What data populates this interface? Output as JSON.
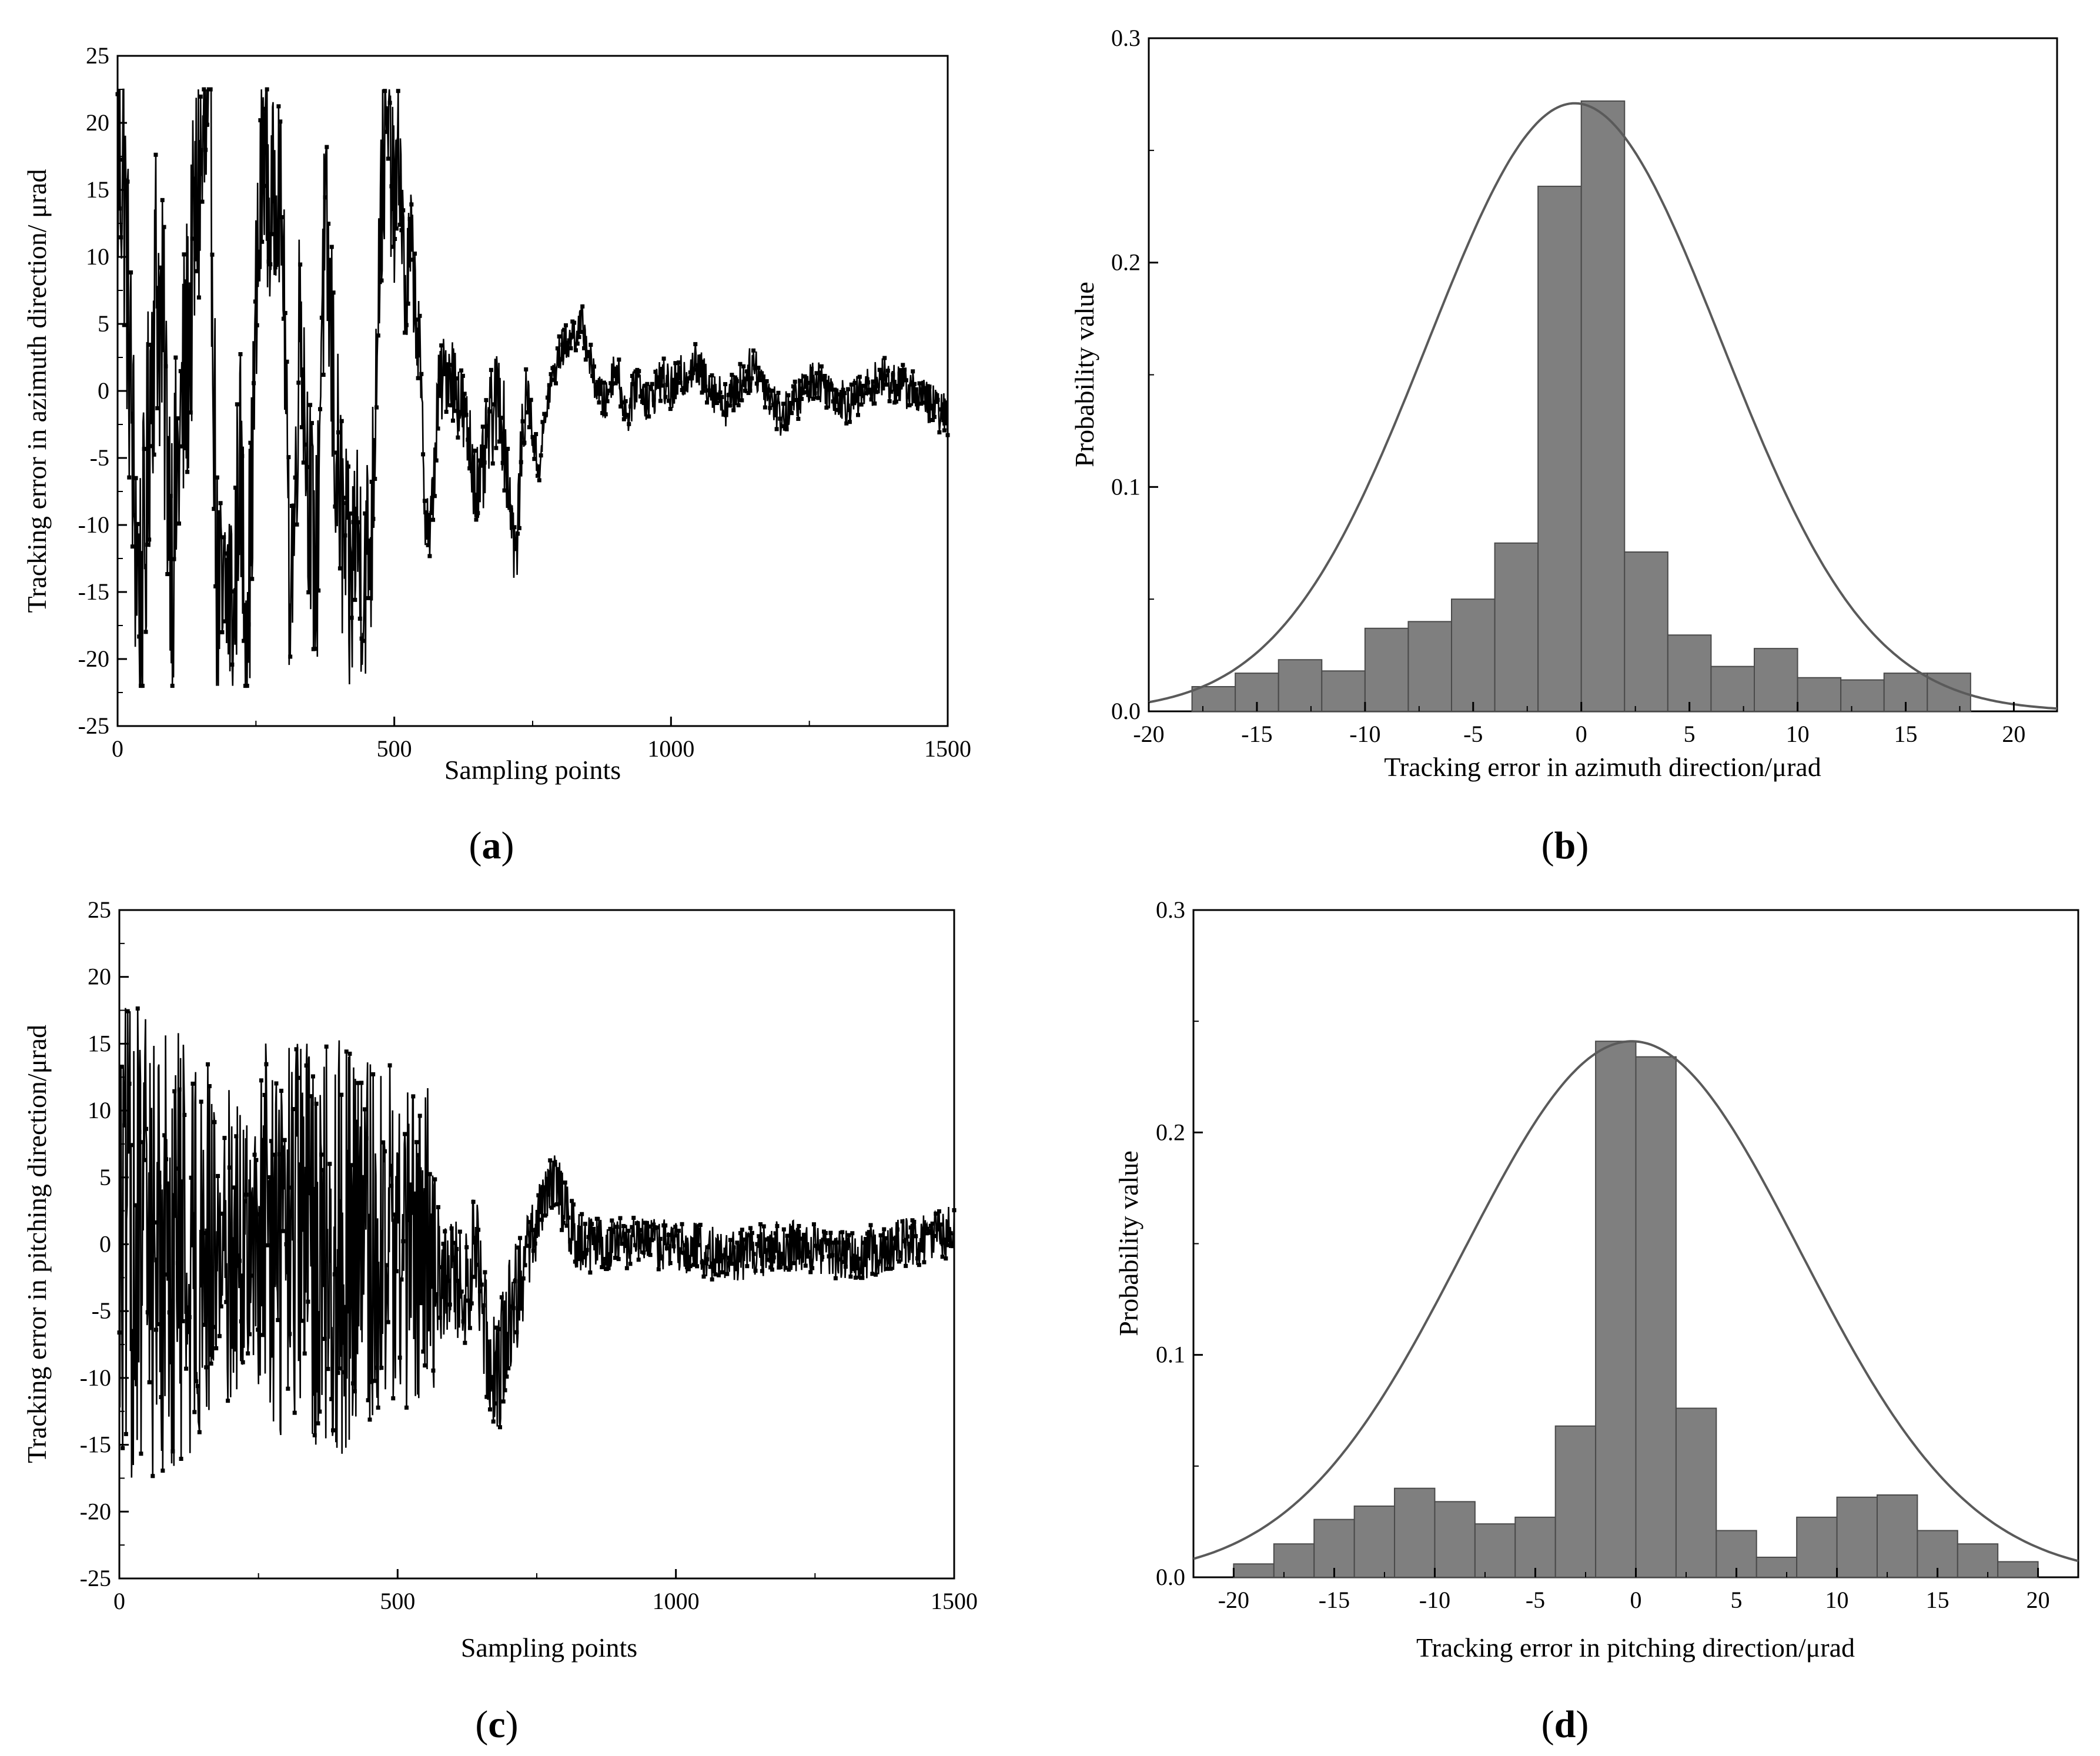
{
  "figure": {
    "panels": [
      "a",
      "b",
      "c",
      "d"
    ],
    "colors": {
      "line": "#000000",
      "bar": "#7f7f7f",
      "bar_edge": "#4a4a4a",
      "curve": "#5a5a5a",
      "frame": "#000000"
    }
  },
  "chart_data": [
    {
      "id": "a",
      "panel_label": "a",
      "type": "line",
      "title": "",
      "xlabel": "Sampling points",
      "ylabel": "Tracking error in azimuth direction/ μrad",
      "xlim": [
        0,
        1500
      ],
      "ylim": [
        -25,
        25
      ],
      "xticks": [
        0,
        500,
        1000,
        1500
      ],
      "yticks": [
        -25,
        -20,
        -15,
        -10,
        -5,
        0,
        5,
        10,
        15,
        20,
        25
      ],
      "markers": true,
      "envelope": [
        [
          0,
          17
        ],
        [
          10,
          18
        ],
        [
          20,
          5
        ],
        [
          30,
          -8
        ],
        [
          40,
          -16
        ],
        [
          50,
          -12
        ],
        [
          60,
          2
        ],
        [
          70,
          9
        ],
        [
          80,
          4
        ],
        [
          100,
          -12
        ],
        [
          110,
          -5
        ],
        [
          120,
          0
        ],
        [
          130,
          5
        ],
        [
          145,
          15
        ],
        [
          160,
          18
        ],
        [
          170,
          14
        ],
        [
          180,
          -16
        ],
        [
          190,
          -18
        ],
        [
          200,
          -14
        ],
        [
          210,
          -18
        ],
        [
          220,
          -4
        ],
        [
          230,
          -15
        ],
        [
          240,
          -12
        ],
        [
          250,
          5
        ],
        [
          260,
          15
        ],
        [
          265,
          20
        ],
        [
          275,
          12
        ],
        [
          290,
          17
        ],
        [
          300,
          9
        ],
        [
          310,
          -14
        ],
        [
          320,
          -10
        ],
        [
          330,
          8
        ],
        [
          340,
          -3
        ],
        [
          350,
          -10
        ],
        [
          360,
          -14
        ],
        [
          370,
          9
        ],
        [
          380,
          9
        ],
        [
          395,
          -5
        ],
        [
          410,
          -12
        ],
        [
          420,
          -16
        ],
        [
          430,
          -10
        ],
        [
          445,
          -14
        ],
        [
          460,
          -10
        ],
        [
          470,
          8
        ],
        [
          480,
          17
        ],
        [
          490,
          19
        ],
        [
          500,
          13
        ],
        [
          510,
          18
        ],
        [
          520,
          6
        ],
        [
          530,
          11
        ],
        [
          545,
          3
        ],
        [
          555,
          -8
        ],
        [
          565,
          -11
        ],
        [
          580,
          0
        ],
        [
          600,
          2
        ],
        [
          620,
          -1
        ],
        [
          640,
          -5
        ],
        [
          655,
          -8
        ],
        [
          670,
          -3
        ],
        [
          690,
          0
        ],
        [
          710,
          -8
        ],
        [
          720,
          -13
        ],
        [
          730,
          -4
        ],
        [
          740,
          0
        ],
        [
          760,
          -6
        ],
        [
          780,
          0
        ],
        [
          800,
          3
        ],
        [
          820,
          4
        ],
        [
          840,
          5
        ],
        [
          860,
          1
        ],
        [
          880,
          -1
        ],
        [
          900,
          2
        ],
        [
          920,
          -2
        ],
        [
          940,
          1
        ],
        [
          960,
          -1
        ],
        [
          980,
          1
        ],
        [
          1000,
          0
        ],
        [
          1040,
          2
        ],
        [
          1100,
          -1
        ],
        [
          1150,
          2
        ],
        [
          1200,
          -2
        ],
        [
          1260,
          1
        ],
        [
          1320,
          -1
        ],
        [
          1380,
          1
        ],
        [
          1440,
          0
        ],
        [
          1500,
          -2
        ]
      ],
      "noise_amplitude": [
        [
          0,
          12
        ],
        [
          170,
          11
        ],
        [
          250,
          9
        ],
        [
          300,
          7
        ],
        [
          380,
          10
        ],
        [
          470,
          8
        ],
        [
          560,
          3
        ],
        [
          700,
          4
        ],
        [
          760,
          1.5
        ],
        [
          850,
          1.5
        ],
        [
          1000,
          1.8
        ],
        [
          1250,
          1.6
        ],
        [
          1500,
          1.6
        ]
      ]
    },
    {
      "id": "b",
      "panel_label": "b",
      "type": "bar",
      "title": "",
      "xlabel": "Tracking error in azimuth direction/μrad",
      "ylabel": "Probability value",
      "xlim": [
        -20,
        22
      ],
      "ylim": [
        0,
        0.3
      ],
      "xticks": [
        -20,
        -15,
        -10,
        -5,
        0,
        5,
        10,
        15,
        20
      ],
      "yticks": [
        0.0,
        0.1,
        0.2,
        0.3
      ],
      "ytick_labels": [
        "0.0",
        "0.1",
        "0.2",
        "0.3"
      ],
      "bin_edges": [
        -18,
        -16,
        -14,
        -12,
        -10,
        -8,
        -6,
        -4,
        -2,
        0,
        2,
        4,
        6,
        8,
        10,
        12,
        14,
        16,
        18
      ],
      "values": [
        0.011,
        0.017,
        0.023,
        0.018,
        0.037,
        0.04,
        0.05,
        0.075,
        0.234,
        0.272,
        0.071,
        0.034,
        0.02,
        0.028,
        0.015,
        0.014,
        0.017,
        0.017
      ],
      "fit_curve": {
        "type": "normal",
        "mean": -0.3,
        "sd": 6.8,
        "peak": 0.271
      }
    },
    {
      "id": "c",
      "panel_label": "c",
      "type": "line",
      "title": "",
      "xlabel": "Sampling points",
      "ylabel": "Tracking error in pitching direction/μrad",
      "xlim": [
        0,
        1500
      ],
      "ylim": [
        -25,
        25
      ],
      "xticks": [
        0,
        500,
        1000,
        1500
      ],
      "yticks": [
        -25,
        -20,
        -15,
        -10,
        -5,
        0,
        5,
        10,
        15,
        20,
        25
      ],
      "markers": true,
      "envelope": [
        [
          0,
          0
        ],
        [
          250,
          0
        ],
        [
          560,
          0
        ],
        [
          580,
          -3
        ],
        [
          600,
          -2
        ],
        [
          620,
          -4
        ],
        [
          640,
          0
        ],
        [
          660,
          -7
        ],
        [
          680,
          -10
        ],
        [
          700,
          -5
        ],
        [
          720,
          -3
        ],
        [
          740,
          0
        ],
        [
          760,
          3
        ],
        [
          780,
          5
        ],
        [
          800,
          3
        ],
        [
          820,
          0
        ],
        [
          900,
          0
        ],
        [
          1000,
          0
        ],
        [
          1100,
          -1
        ],
        [
          1200,
          0
        ],
        [
          1300,
          -1
        ],
        [
          1400,
          0
        ],
        [
          1500,
          1
        ]
      ],
      "noise_amplitude": [
        [
          0,
          18
        ],
        [
          100,
          17
        ],
        [
          200,
          12
        ],
        [
          240,
          8
        ],
        [
          260,
          15
        ],
        [
          400,
          16
        ],
        [
          460,
          14
        ],
        [
          560,
          12
        ],
        [
          580,
          4
        ],
        [
          700,
          5
        ],
        [
          760,
          2
        ],
        [
          800,
          2.5
        ],
        [
          900,
          2
        ],
        [
          1000,
          2
        ],
        [
          1200,
          2
        ],
        [
          1500,
          2
        ]
      ]
    },
    {
      "id": "d",
      "panel_label": "d",
      "type": "bar",
      "title": "",
      "xlabel": "Tracking error in pitching direction/μrad",
      "ylabel": "Probability value",
      "xlim": [
        -22,
        22
      ],
      "ylim": [
        0,
        0.3
      ],
      "xticks": [
        -20,
        -15,
        -10,
        -5,
        0,
        5,
        10,
        15,
        20
      ],
      "yticks": [
        0.0,
        0.1,
        0.2,
        0.3
      ],
      "ytick_labels": [
        "0.0",
        "0.1",
        "0.2",
        "0.3"
      ],
      "bin_edges": [
        -20,
        -18,
        -16,
        -14,
        -12,
        -10,
        -8,
        -6,
        -4,
        -2,
        0,
        2,
        4,
        6,
        8,
        10,
        12,
        14,
        16,
        18,
        20
      ],
      "values": [
        0.006,
        0.015,
        0.026,
        0.032,
        0.04,
        0.034,
        0.024,
        0.027,
        0.068,
        0.241,
        0.234,
        0.076,
        0.021,
        0.009,
        0.027,
        0.036,
        0.037,
        0.021,
        0.015,
        0.007
      ],
      "fit_curve": {
        "type": "normal",
        "mean": -0.2,
        "sd": 8.4,
        "peak": 0.241
      }
    }
  ]
}
